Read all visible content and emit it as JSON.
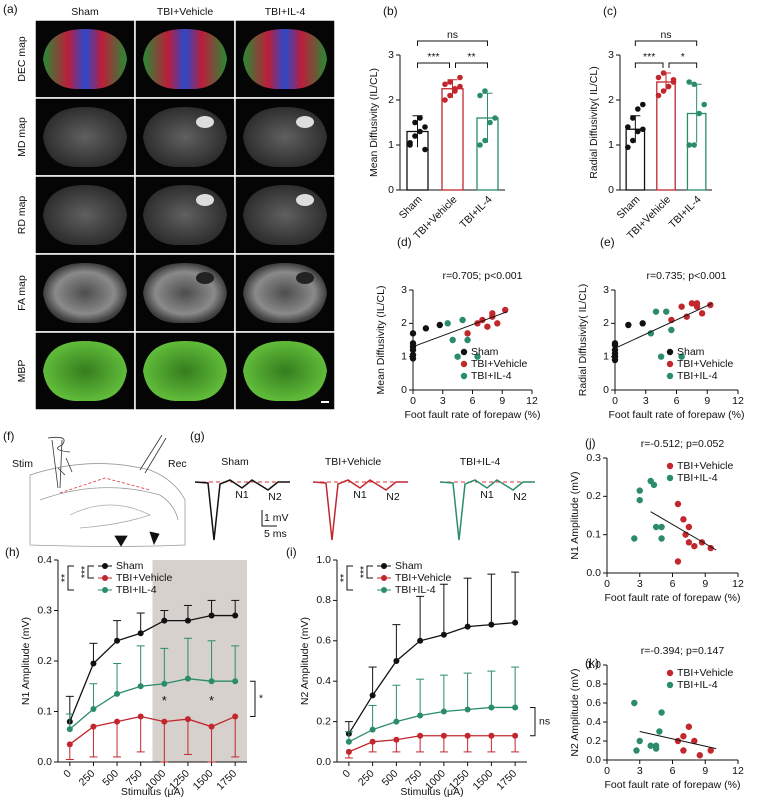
{
  "panel_a": {
    "label": "(a)",
    "columns": [
      "Sham",
      "TBI+Vehicle",
      "TBI+IL-4"
    ],
    "rows": [
      "DEC map",
      "MD map",
      "RD map",
      "FA map",
      "MBP"
    ]
  },
  "panel_f": {
    "label": "(f)",
    "stim": "Stim",
    "rec": "Rec"
  },
  "panel_g": {
    "label": "(g)",
    "titles": [
      "Sham",
      "TBI+Vehicle",
      "TBI+IL-4"
    ],
    "n1": "N1",
    "n2": "N2",
    "scale_v": "1 mV",
    "scale_t": "5 ms"
  },
  "chart_data": [
    {
      "type": "bar",
      "panel": "(b)",
      "y_label": "Mean Diffusivity (IL/CL)",
      "categories": [
        "Sham",
        "TBI+Vehicle",
        "TBI+IL-4"
      ],
      "values": [
        1.3,
        2.25,
        1.6
      ],
      "errors": [
        0.35,
        0.2,
        0.55
      ],
      "colors": [
        "#111111",
        "#c1272d",
        "#2a8c6a"
      ],
      "points": [
        [
          1.0,
          1.2,
          1.3,
          1.4,
          1.05,
          1.5,
          1.6,
          0.9
        ],
        [
          2.0,
          2.1,
          2.2,
          2.3,
          2.35,
          2.4,
          2.25,
          2.5
        ],
        [
          1.0,
          1.1,
          1.5,
          1.6,
          2.1,
          2.2
        ]
      ],
      "significance": [
        "***",
        "**",
        "ns"
      ],
      "ylim": [
        0,
        3
      ],
      "yticks": [
        0,
        1,
        2,
        3
      ]
    },
    {
      "type": "bar",
      "panel": "(c)",
      "y_label": "Radial Diffusivity( IL/CL)",
      "categories": [
        "Sham",
        "TBI+Vehicle",
        "TBI+IL-4"
      ],
      "values": [
        1.35,
        2.4,
        1.7
      ],
      "errors": [
        0.3,
        0.2,
        0.65
      ],
      "colors": [
        "#111111",
        "#c1272d",
        "#2a8c6a"
      ],
      "points": [
        [
          0.95,
          1.1,
          1.3,
          1.35,
          1.4,
          1.6,
          1.8,
          1.9
        ],
        [
          2.1,
          2.2,
          2.3,
          2.4,
          2.5,
          2.6,
          2.3,
          2.45
        ],
        [
          1.0,
          1.0,
          1.7,
          1.9,
          2.4,
          2.35
        ]
      ],
      "significance": [
        "***",
        "*",
        "ns"
      ],
      "ylim": [
        0,
        3
      ],
      "yticks": [
        0,
        1,
        2,
        3
      ]
    },
    {
      "type": "scatter",
      "panel": "(d)",
      "title": "r=0.705; p<0.001",
      "x_label": "Foot fault rate of forepaw (%)",
      "y_label": "Mean Diffusivity (IL/CL)",
      "series": [
        {
          "name": "Sham",
          "color": "#111111",
          "x": [
            0,
            0,
            0,
            0,
            0,
            0,
            1.3,
            2.7
          ],
          "y": [
            0.95,
            1.05,
            1.2,
            1.3,
            1.4,
            1.7,
            1.85,
            1.95
          ]
        },
        {
          "name": "TBI+Vehicle",
          "color": "#c1272d",
          "x": [
            5.5,
            6.5,
            7,
            7.5,
            8,
            8.5,
            8,
            9.3
          ],
          "y": [
            1.7,
            2.0,
            2.1,
            1.9,
            2.2,
            2.0,
            2.3,
            2.4
          ]
        },
        {
          "name": "TBI+IL-4",
          "color": "#2a8c6a",
          "x": [
            3.5,
            4.5,
            4,
            5,
            6.5,
            5.5
          ],
          "y": [
            2.0,
            1.0,
            1.5,
            2.1,
            1.0,
            1.5
          ]
        }
      ],
      "fit": {
        "x": [
          0,
          9.5
        ],
        "y": [
          1.3,
          2.35
        ]
      },
      "legend": "lower right",
      "xlim": [
        0,
        12
      ],
      "xticks": [
        0,
        3,
        6,
        9,
        12
      ],
      "ylim": [
        0,
        3
      ],
      "yticks": [
        0,
        1,
        2,
        3
      ]
    },
    {
      "type": "scatter",
      "panel": "(e)",
      "title": "r=0.735; p<0.001",
      "x_label": "Foot fault rate of forepaw (%)",
      "y_label": "Radial Diffusivity( IL/CL)",
      "series": [
        {
          "name": "Sham",
          "color": "#111111",
          "x": [
            0,
            0,
            0,
            0,
            0,
            0,
            1.3,
            2.7
          ],
          "y": [
            0.9,
            1.0,
            1.1,
            1.2,
            1.35,
            1.4,
            1.95,
            2.0
          ]
        },
        {
          "name": "TBI+Vehicle",
          "color": "#c1272d",
          "x": [
            5.5,
            6.5,
            7,
            7.5,
            8,
            8.5,
            8,
            9.3
          ],
          "y": [
            2.1,
            2.5,
            2.2,
            2.6,
            2.5,
            2.3,
            2.6,
            2.55
          ]
        },
        {
          "name": "TBI+IL-4",
          "color": "#2a8c6a",
          "x": [
            3.5,
            4.5,
            4,
            5,
            6.5,
            5.5
          ],
          "y": [
            1.7,
            1.0,
            2.35,
            2.35,
            1.0,
            1.8
          ]
        }
      ],
      "fit": {
        "x": [
          0,
          9.5
        ],
        "y": [
          1.25,
          2.6
        ]
      },
      "legend": "lower right",
      "xlim": [
        0,
        12
      ],
      "xticks": [
        0,
        3,
        6,
        9,
        12
      ],
      "ylim": [
        0,
        3
      ],
      "yticks": [
        0,
        1,
        2,
        3
      ]
    },
    {
      "type": "line",
      "panel": "(h)",
      "x_label": "Stimulus (μA)",
      "y_label": "N1 Amplitude (mV)",
      "x": [
        0,
        250,
        500,
        750,
        1000,
        1250,
        1500,
        1750
      ],
      "series": [
        {
          "name": "Sham",
          "color": "#111111",
          "values": [
            0.08,
            0.195,
            0.24,
            0.255,
            0.28,
            0.28,
            0.29,
            0.29
          ],
          "errors": [
            0.05,
            0.04,
            0.04,
            0.04,
            0.02,
            0.03,
            0.03,
            0.03
          ],
          "error_dir": "up"
        },
        {
          "name": "TBI+Vehicle",
          "color": "#c1272d",
          "values": [
            0.035,
            0.07,
            0.08,
            0.09,
            0.08,
            0.085,
            0.07,
            0.09
          ],
          "errors": [
            0.03,
            0.06,
            0.07,
            0.07,
            0.08,
            0.07,
            0.07,
            0.08
          ],
          "error_dir": "down"
        },
        {
          "name": "TBI+IL-4",
          "color": "#2a8c6a",
          "values": [
            0.065,
            0.105,
            0.135,
            0.15,
            0.155,
            0.165,
            0.16,
            0.16
          ],
          "errors": [
            0.03,
            0.05,
            0.06,
            0.08,
            0.07,
            0.08,
            0.08,
            0.07
          ],
          "error_dir": "up"
        }
      ],
      "shade": [
        875,
        1875
      ],
      "annotations": [
        {
          "text": "*",
          "x": 1000,
          "y": 0.12
        },
        {
          "text": "*",
          "x": 1500,
          "y": 0.12
        }
      ],
      "legend_significance": [
        "**",
        "***"
      ],
      "right_annotation": "*",
      "xlim": [
        -125,
        1875
      ],
      "xticks": [
        0,
        250,
        500,
        750,
        1000,
        1250,
        1500,
        1750
      ],
      "ylim": [
        0,
        0.4
      ],
      "yticks": [
        {
          "value": 0,
          "label": "0.0"
        },
        0.1,
        0.2,
        0.3,
        0.4
      ]
    },
    {
      "type": "line",
      "panel": "(i)",
      "x_label": "Stimulus (μA)",
      "y_label": "N2 Amplitude (mV)",
      "x": [
        0,
        250,
        500,
        750,
        1000,
        1250,
        1500,
        1750
      ],
      "series": [
        {
          "name": "Sham",
          "color": "#111111",
          "values": [
            0.14,
            0.33,
            0.5,
            0.6,
            0.63,
            0.67,
            0.68,
            0.69
          ],
          "errors": [
            0.06,
            0.14,
            0.18,
            0.22,
            0.25,
            0.24,
            0.25,
            0.25
          ],
          "error_dir": "up"
        },
        {
          "name": "TBI+Vehicle",
          "color": "#c1272d",
          "values": [
            0.05,
            0.1,
            0.11,
            0.13,
            0.13,
            0.13,
            0.13,
            0.13
          ],
          "errors": [
            0.03,
            0.05,
            0.06,
            0.08,
            0.08,
            0.08,
            0.08,
            0.08
          ],
          "error_dir": "down"
        },
        {
          "name": "TBI+IL-4",
          "color": "#2a8c6a",
          "values": [
            0.1,
            0.16,
            0.2,
            0.23,
            0.25,
            0.26,
            0.27,
            0.27
          ],
          "errors": [
            0.05,
            0.12,
            0.18,
            0.18,
            0.18,
            0.18,
            0.18,
            0.2
          ],
          "error_dir": "up"
        }
      ],
      "legend_significance": [
        "**",
        "***"
      ],
      "right_annotation": "ns",
      "xlim": [
        -125,
        1875
      ],
      "xticks": [
        0,
        250,
        500,
        750,
        1000,
        1250,
        1500,
        1750
      ],
      "ylim": [
        0,
        1
      ],
      "yticks": [
        {
          "value": 0,
          "label": "0.0"
        },
        0.2,
        0.4,
        0.6,
        0.8,
        {
          "value": 1,
          "label": "1.0"
        }
      ]
    },
    {
      "type": "scatter",
      "panel": "(j)",
      "title": "r=-0.512; p=0.052",
      "x_label": "Foot fault rate of forepaw (%)",
      "y_label": "N1 Amplitude (mV)",
      "series": [
        {
          "name": "TBI+Vehicle",
          "color": "#c1272d",
          "x": [
            6.5,
            7,
            7.2,
            7.5,
            6.5,
            8,
            8.7,
            9.5,
            7.5
          ],
          "y": [
            0.18,
            0.14,
            0.1,
            0.08,
            0.03,
            0.07,
            0.08,
            0.065,
            0.12
          ]
        },
        {
          "name": "TBI+IL-4",
          "color": "#2a8c6a",
          "x": [
            2.5,
            3,
            3,
            4,
            4.3,
            4.5,
            5,
            5
          ],
          "y": [
            0.09,
            0.215,
            0.19,
            0.24,
            0.23,
            0.12,
            0.12,
            0.09
          ]
        }
      ],
      "fit": {
        "x": [
          4,
          10
        ],
        "y": [
          0.16,
          0.06
        ]
      },
      "legend": "upper right",
      "xlim": [
        0,
        12
      ],
      "xticks": [
        0,
        3,
        6,
        9,
        12
      ],
      "ylim": [
        0,
        0.3
      ],
      "yticks": [
        {
          "value": 0,
          "label": "0.0"
        },
        0.1,
        0.2,
        0.3
      ]
    },
    {
      "type": "scatter",
      "panel": "(k)",
      "title": "r=-0.394; p=0.147",
      "x_label": "Foot fault rate of forepaw (%)",
      "y_label": "N2 Amplitude (mV)",
      "series": [
        {
          "name": "TBI+Vehicle",
          "color": "#c1272d",
          "x": [
            6.5,
            7,
            7.5,
            8,
            8.5,
            9.5,
            7
          ],
          "y": [
            0.2,
            0.1,
            0.35,
            0.2,
            0.05,
            0.1,
            0.25
          ]
        },
        {
          "name": "TBI+IL-4",
          "color": "#2a8c6a",
          "x": [
            2.5,
            2.7,
            3,
            4,
            4.5,
            5,
            4.8,
            4.5
          ],
          "y": [
            0.6,
            0.1,
            0.2,
            0.15,
            0.15,
            0.5,
            0.3,
            0.12
          ]
        }
      ],
      "fit": {
        "x": [
          3,
          10
        ],
        "y": [
          0.3,
          0.12
        ]
      },
      "legend": "upper right",
      "xlim": [
        0,
        12
      ],
      "xticks": [
        0,
        3,
        6,
        9,
        12
      ],
      "ylim": [
        0,
        1
      ],
      "yticks": [
        {
          "value": 0,
          "label": "0.0"
        },
        0.2,
        0.4,
        0.6,
        0.8,
        {
          "value": 1,
          "label": "1.0"
        }
      ]
    }
  ]
}
